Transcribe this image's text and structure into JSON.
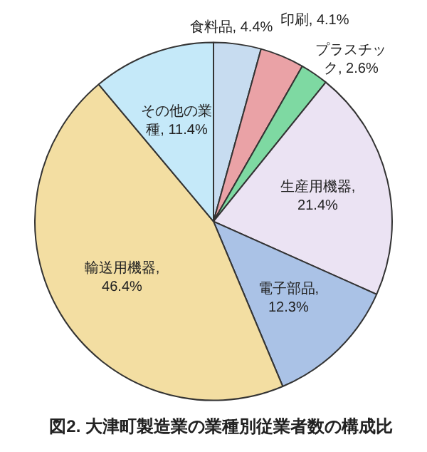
{
  "chart_data": {
    "type": "pie",
    "title": "図2. 大津町製造業の業種別従業者数の構成比",
    "categories": [
      "食料品",
      "印刷",
      "プラスチック",
      "生産用機器",
      "電子部品",
      "輸送用機器",
      "その他の業種"
    ],
    "values": [
      4.4,
      4.1,
      2.6,
      21.4,
      12.3,
      46.4,
      11.4
    ],
    "value_labels": [
      ", 4.4%",
      ", 4.1%",
      ", 2.6%",
      ", 21.4%",
      ", 12.3%",
      ", 46.4%",
      ", 11.4%"
    ],
    "colors": [
      "#c7dcf0",
      "#eaa2a6",
      "#7ed9a2",
      "#ebe3f3",
      "#aac2e6",
      "#f3dea2",
      "#c5e9f9"
    ],
    "legend": false
  }
}
